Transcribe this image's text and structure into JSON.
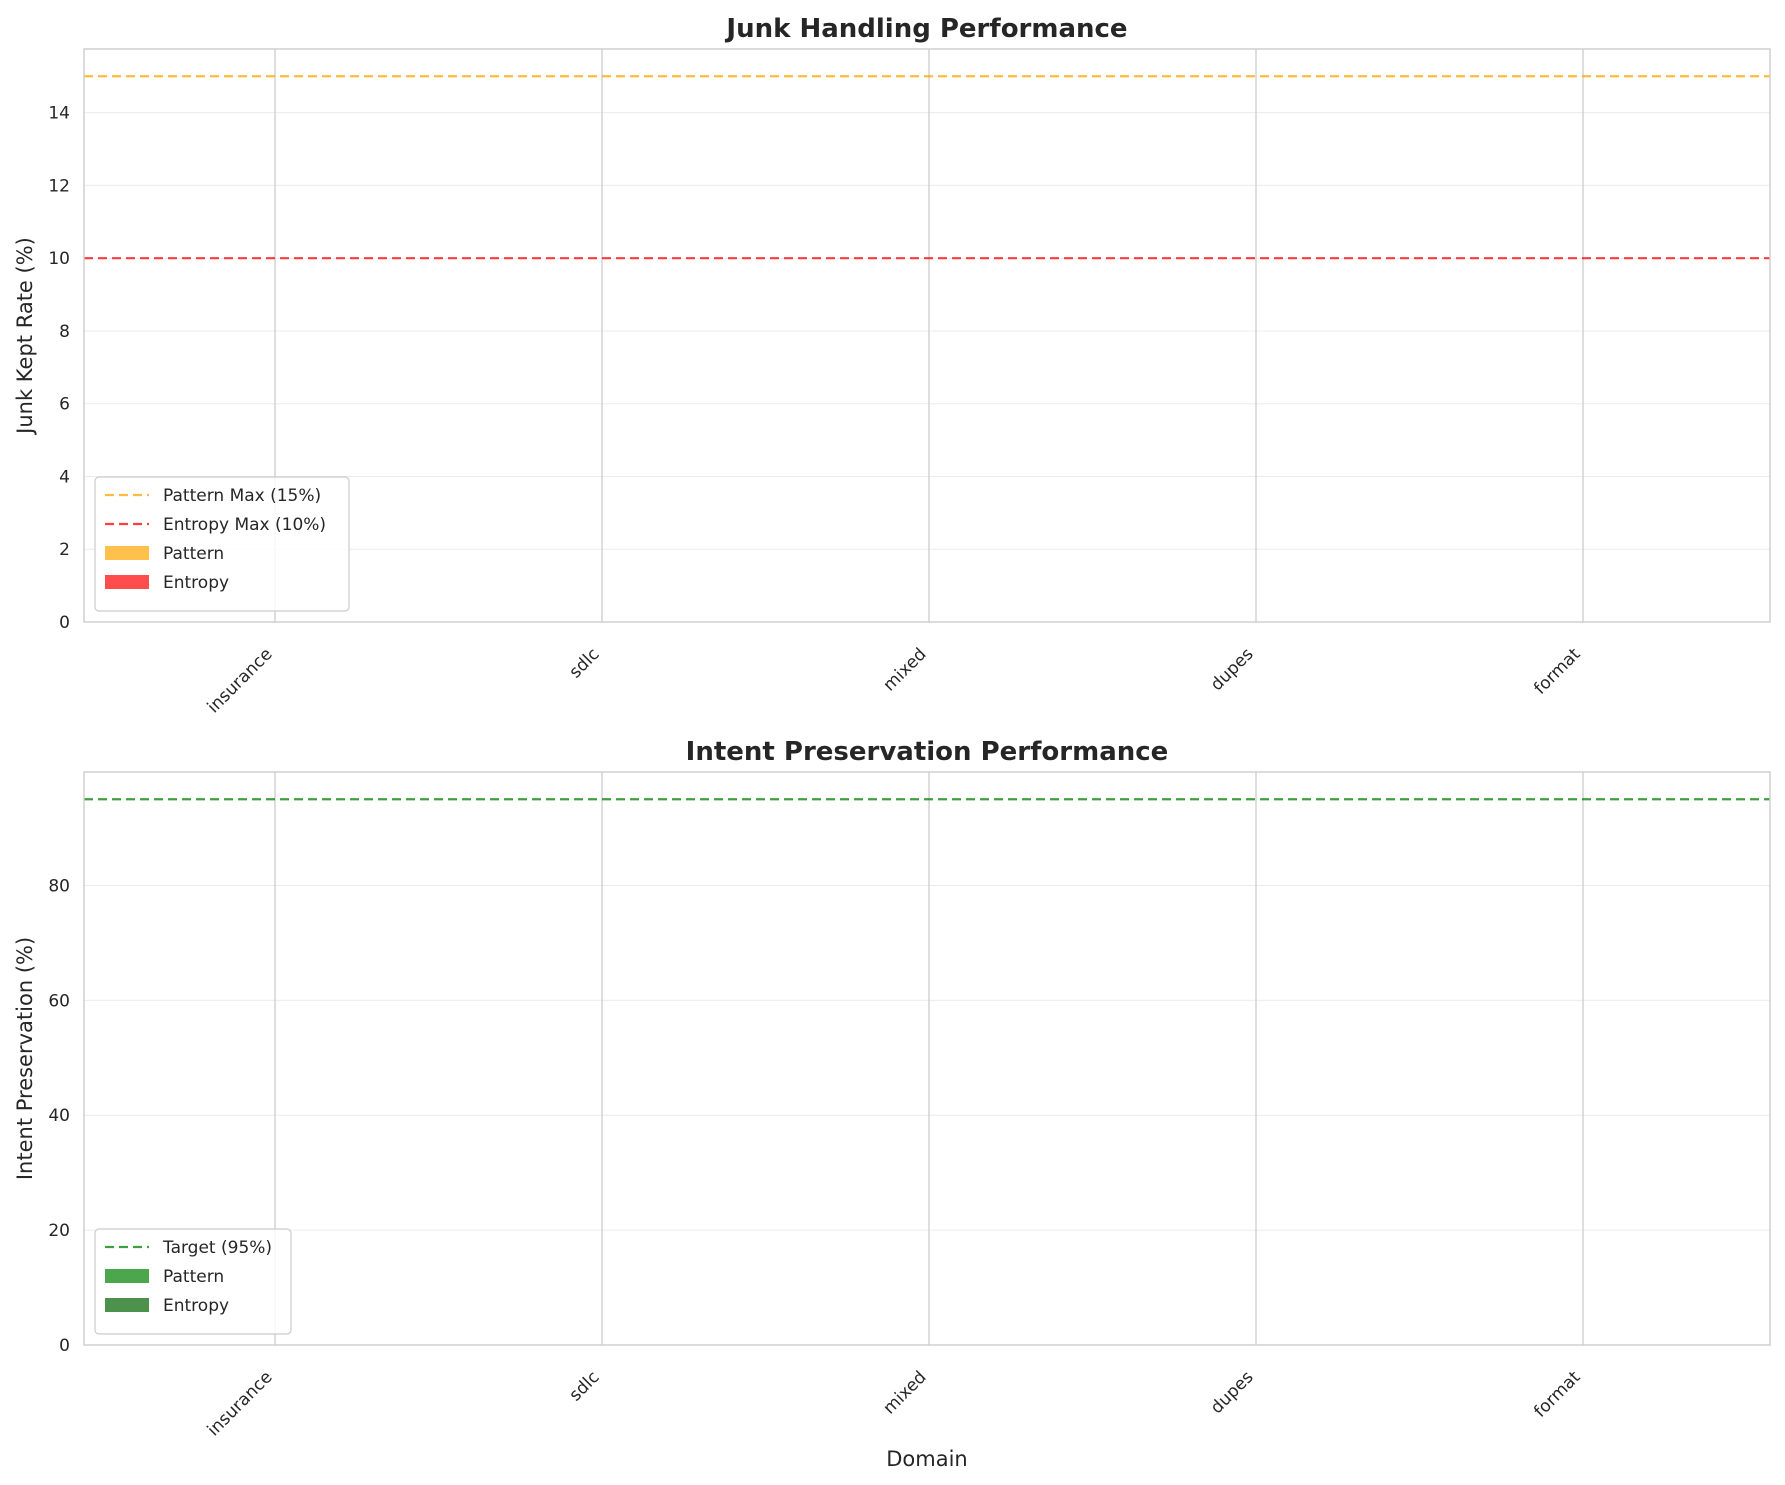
{
  "chart_data": [
    {
      "type": "bar",
      "title": "Junk Handling Performance",
      "xlabel": "",
      "ylabel": "Junk Kept Rate (%)",
      "categories": [
        "insurance",
        "sdlc",
        "mixed",
        "dupes",
        "format"
      ],
      "ylim": [
        0,
        15.75
      ],
      "yticks": [
        0,
        2,
        4,
        6,
        8,
        10,
        12,
        14
      ],
      "grid": true,
      "legend_position": "lower-left",
      "series": [
        {
          "name": "Pattern",
          "values": [
            0,
            0,
            0,
            0,
            0
          ],
          "color": "#FFA500"
        },
        {
          "name": "Entropy",
          "values": [
            0,
            0,
            0,
            0,
            0
          ],
          "color": "#FF0000"
        }
      ],
      "reference_lines": [
        {
          "name": "Pattern Max (15%)",
          "y": 15,
          "color": "#FFA500"
        },
        {
          "name": "Entropy Max (10%)",
          "y": 10,
          "color": "#FF0000"
        }
      ]
    },
    {
      "type": "bar",
      "title": "Intent Preservation Performance",
      "xlabel": "Domain",
      "ylabel": "Intent Preservation (%)",
      "categories": [
        "insurance",
        "sdlc",
        "mixed",
        "dupes",
        "format"
      ],
      "ylim": [
        0,
        99.75
      ],
      "yticks": [
        0,
        20,
        40,
        60,
        80
      ],
      "grid": true,
      "legend_position": "lower-left",
      "series": [
        {
          "name": "Pattern",
          "values": [
            0,
            0,
            0,
            0,
            0
          ],
          "color": "#008000"
        },
        {
          "name": "Entropy",
          "values": [
            0,
            0,
            0,
            0,
            0
          ],
          "color": "#006400"
        }
      ],
      "reference_lines": [
        {
          "name": "Target (95%)",
          "y": 95,
          "color": "#008000"
        }
      ]
    }
  ]
}
